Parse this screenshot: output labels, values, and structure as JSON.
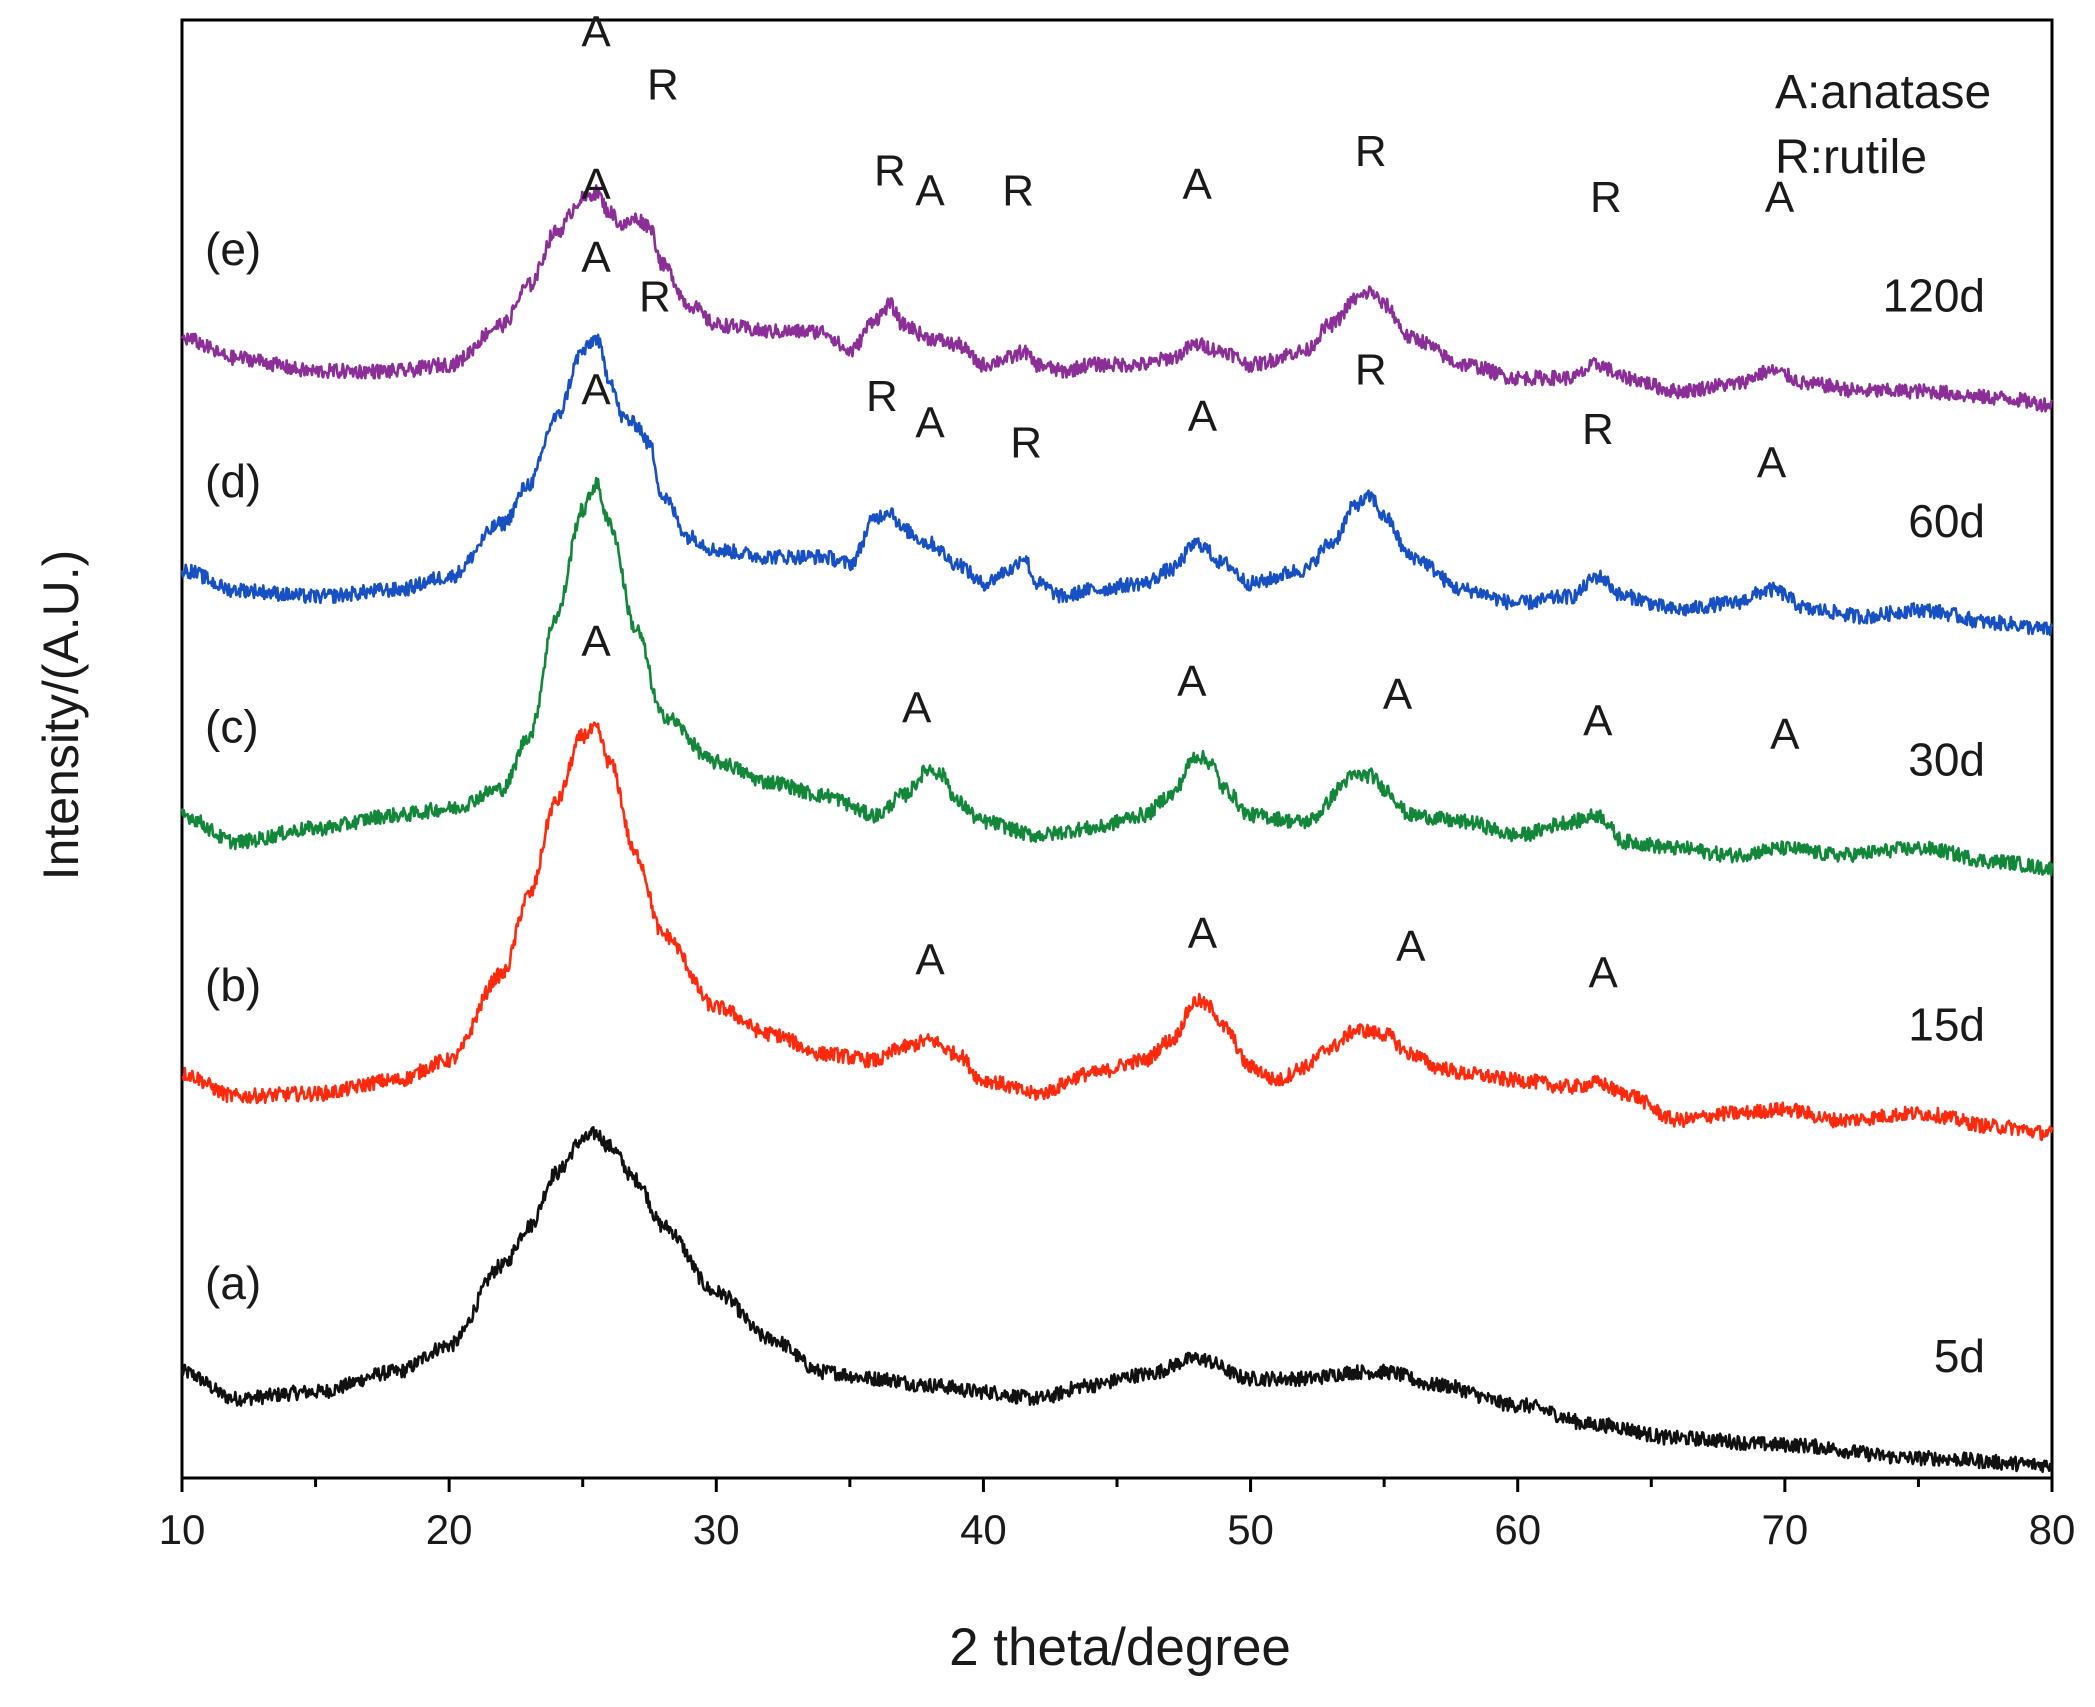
{
  "chart_data": {
    "type": "line",
    "title": "",
    "xlabel": "2 theta/degree",
    "ylabel": "Intensity/(A.U.)",
    "xlim": [
      10,
      80
    ],
    "xticks": [
      10,
      20,
      30,
      40,
      50,
      60,
      70,
      80
    ],
    "xticks_minor_step": 5,
    "ylim": [
      0,
      110
    ],
    "grid": false,
    "legend_text": [
      "A:anatase",
      "R:rutile"
    ],
    "legend_position": "top-right",
    "series": [
      {
        "id": "a",
        "label": "(a)",
        "time": "5d",
        "color": "#111111",
        "x": [
          10,
          12,
          15,
          18,
          20,
          22,
          23,
          24,
          25,
          25.5,
          26,
          27,
          28,
          30,
          32,
          34,
          36,
          38,
          40,
          42,
          44,
          46,
          48,
          50,
          52,
          54,
          55,
          57,
          60,
          63,
          66,
          70,
          75,
          80
        ],
        "y": [
          8,
          6,
          6.5,
          8,
          10,
          16,
          19,
          23,
          25.5,
          26,
          25,
          22.5,
          19,
          14,
          10.5,
          8,
          7.5,
          7,
          6.5,
          6,
          7,
          7.8,
          9,
          7.5,
          7.5,
          8,
          8,
          7,
          5.5,
          4,
          3,
          2.5,
          1.5,
          1
        ],
        "annotations": []
      },
      {
        "id": "b",
        "label": "(b)",
        "time": "15d",
        "color": "#ff2a0d",
        "x": [
          10,
          12,
          15,
          18,
          20,
          22,
          23,
          24,
          25,
          25.5,
          26,
          27,
          28,
          30,
          32,
          34,
          36,
          37,
          38,
          39,
          40,
          42,
          44,
          46,
          47,
          48,
          48.5,
          49,
          50,
          51,
          52,
          53,
          54,
          55,
          56,
          57,
          58,
          60,
          62,
          63,
          64,
          66,
          68,
          70,
          72,
          75,
          78,
          80
        ],
        "y": [
          30.5,
          28.8,
          29,
          30,
          31.5,
          38,
          44,
          51,
          56,
          56.5,
          54,
          47,
          41,
          35.5,
          33.5,
          32,
          31.5,
          32.5,
          33,
          32,
          30,
          29,
          30.5,
          31.5,
          33,
          36,
          35.5,
          34,
          31,
          30,
          31,
          32.5,
          33.8,
          33.5,
          32,
          31,
          30.5,
          30,
          29.5,
          29.8,
          29,
          27,
          27.5,
          27.8,
          27,
          27.5,
          26.5,
          26
        ],
        "annotations": [
          {
            "t": "A",
            "x": 25.5,
            "y": 62
          },
          {
            "t": "A",
            "x": 38,
            "y": 38
          },
          {
            "t": "A",
            "x": 48.2,
            "y": 40
          },
          {
            "t": "A",
            "x": 56,
            "y": 39
          },
          {
            "t": "A",
            "x": 63.2,
            "y": 37
          }
        ]
      },
      {
        "id": "c",
        "label": "(c)",
        "time": "30d",
        "color": "#12873a",
        "x": [
          10,
          12,
          15,
          18,
          20,
          22,
          23,
          24,
          25,
          25.5,
          26,
          27,
          28,
          30,
          32,
          34,
          36,
          37,
          38,
          38.5,
          39,
          40,
          42,
          44,
          46,
          47,
          48,
          48.5,
          49,
          50,
          52,
          54,
          54.5,
          55,
          56,
          58,
          60,
          62,
          63,
          64,
          66,
          68,
          70,
          72,
          75,
          78,
          80
        ],
        "y": [
          50,
          48,
          49,
          50,
          50.5,
          52,
          56,
          65,
          73,
          75,
          72,
          64,
          57.5,
          54,
          52.5,
          51.5,
          50,
          51.5,
          53.5,
          53,
          51,
          49.5,
          48.5,
          49,
          50,
          51.5,
          54.5,
          54,
          52,
          50,
          49.5,
          53,
          53,
          52,
          50,
          49.5,
          48.5,
          49.5,
          50,
          48,
          47.5,
          47,
          47.5,
          47,
          47.5,
          46.5,
          46
        ],
        "annotations": [
          {
            "t": "A",
            "x": 25.5,
            "y": 81
          },
          {
            "t": "A",
            "x": 37.5,
            "y": 57
          },
          {
            "t": "A",
            "x": 47.8,
            "y": 59
          },
          {
            "t": "A",
            "x": 55.5,
            "y": 58
          },
          {
            "t": "A",
            "x": 63,
            "y": 56
          },
          {
            "t": "A",
            "x": 70,
            "y": 55
          }
        ]
      },
      {
        "id": "d",
        "label": "(d)",
        "time": "60d",
        "color": "#1750c3",
        "x": [
          10,
          12,
          15,
          18,
          20,
          22,
          23,
          24,
          25,
          25.5,
          26,
          26.5,
          27,
          27.5,
          28,
          29,
          30,
          32,
          34,
          35,
          36,
          36.5,
          37,
          38,
          39,
          40,
          41,
          41.5,
          42,
          43,
          44,
          46,
          47,
          48,
          49,
          50,
          52,
          53,
          54,
          54.5,
          55,
          56,
          58,
          60,
          62,
          63,
          64,
          66,
          68,
          69.5,
          71,
          73,
          75,
          78,
          80
        ],
        "y": [
          68.5,
          67,
          66.5,
          67,
          68,
          72,
          75,
          80,
          85,
          86,
          83,
          80,
          79.5,
          78,
          74,
          71,
          70,
          69.5,
          69.5,
          69,
          72.5,
          73,
          71.5,
          70.5,
          69,
          67.5,
          68.5,
          69.5,
          67.5,
          66.5,
          67,
          67.5,
          68.5,
          70.5,
          69,
          67.5,
          68.5,
          70.5,
          73.5,
          74,
          72.5,
          69.5,
          67,
          66,
          66.5,
          68,
          66.5,
          65.5,
          66,
          67,
          65.5,
          65,
          65.5,
          64.5,
          64
        ],
        "annotations": [
          {
            "t": "A",
            "x": 25.5,
            "y": 91
          },
          {
            "t": "R",
            "x": 27.7,
            "y": 88
          },
          {
            "t": "R",
            "x": 36.2,
            "y": 80.5
          },
          {
            "t": "A",
            "x": 38,
            "y": 78.5
          },
          {
            "t": "R",
            "x": 41.6,
            "y": 77
          },
          {
            "t": "A",
            "x": 48.2,
            "y": 79
          },
          {
            "t": "R",
            "x": 54.5,
            "y": 82.5
          },
          {
            "t": "R",
            "x": 63,
            "y": 78
          },
          {
            "t": "A",
            "x": 69.5,
            "y": 75.5
          }
        ]
      },
      {
        "id": "e",
        "label": "(e)",
        "time": "120d",
        "color": "#8b2e98",
        "x": [
          10,
          12,
          15,
          18,
          20,
          22,
          23,
          24,
          25,
          25.5,
          26,
          26.5,
          27,
          27.5,
          28,
          29,
          30,
          32,
          34,
          35,
          36,
          36.5,
          37,
          38,
          39,
          40,
          41,
          41.5,
          42,
          43,
          44,
          46,
          47,
          48,
          49,
          50,
          52,
          53,
          54,
          54.5,
          55,
          56,
          58,
          60,
          62,
          63,
          64,
          66,
          68,
          69.5,
          71,
          73,
          75,
          78,
          80
        ],
        "y": [
          86,
          84.5,
          83.5,
          83.5,
          84,
          87,
          90,
          94,
          96.5,
          97,
          95.5,
          94.5,
          95,
          94.5,
          91.5,
          88.5,
          87,
          86.5,
          86.5,
          85,
          87.5,
          88.5,
          87,
          86,
          85.5,
          84,
          84.5,
          85,
          84,
          83.5,
          84,
          84,
          84.5,
          85.5,
          85,
          84,
          85,
          87,
          89,
          89.5,
          88.5,
          86,
          84,
          83,
          83,
          84,
          83,
          82,
          82.5,
          83.5,
          82.5,
          82,
          82,
          81.5,
          81
        ],
        "annotations": [
          {
            "t": "A",
            "x": 25.5,
            "y": 108
          },
          {
            "t": "R",
            "x": 28,
            "y": 104
          },
          {
            "t": "R",
            "x": 36.5,
            "y": 97.5
          },
          {
            "t": "A",
            "x": 38,
            "y": 96
          },
          {
            "t": "R",
            "x": 41.3,
            "y": 96
          },
          {
            "t": "A",
            "x": 48,
            "y": 96.5
          },
          {
            "t": "R",
            "x": 54.5,
            "y": 99
          },
          {
            "t": "A",
            "x": 25.5,
            "y": 96.5
          },
          {
            "t": "R",
            "x": 63.3,
            "y": 95.5
          },
          {
            "t": "A",
            "x": 69.8,
            "y": 95.5
          }
        ]
      }
    ]
  }
}
